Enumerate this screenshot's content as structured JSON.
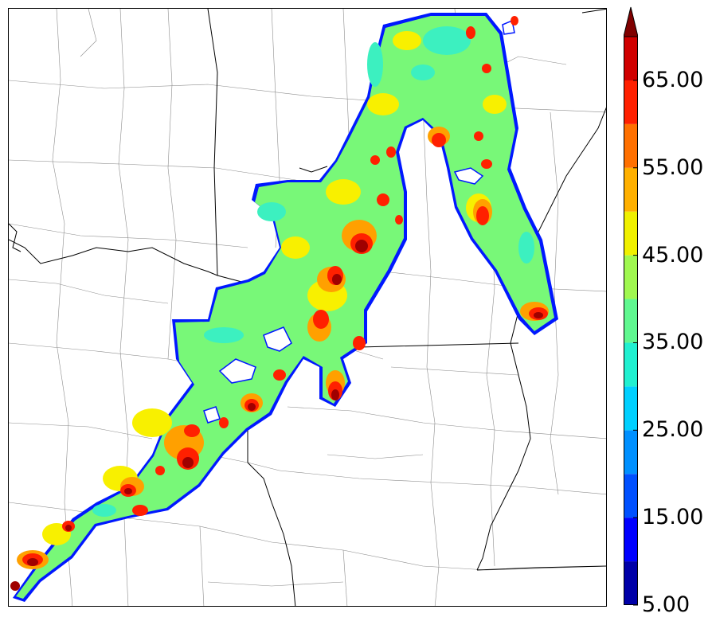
{
  "map": {
    "description_type": "radar reflectivity swath map",
    "colors": {
      "light_blue": "#00d8ff",
      "aqua": "#3cf0c0",
      "green": "#78f878",
      "lime": "#b8f840",
      "yellow": "#f8f000",
      "orange": "#ffa000",
      "red": "#ff2000",
      "dark_red": "#c00000",
      "maroon": "#800000",
      "edge_blue": "#0018ff"
    }
  },
  "colorbar": {
    "levels": [
      5,
      10,
      15,
      20,
      25,
      30,
      35,
      40,
      45,
      50,
      55,
      60,
      65,
      70
    ],
    "colors": [
      "#0000a8",
      "#0000ff",
      "#0050ff",
      "#0090ff",
      "#00d0ff",
      "#20f0d0",
      "#60f890",
      "#a0f850",
      "#f0f000",
      "#ffb000",
      "#ff7000",
      "#ff2000",
      "#d00000",
      "#800000"
    ],
    "extend": "max",
    "tick_labels": [
      {
        "value": 65,
        "text": "65.00"
      },
      {
        "value": 55,
        "text": "55.00"
      },
      {
        "value": 45,
        "text": "45.00"
      },
      {
        "value": 35,
        "text": "35.00"
      },
      {
        "value": 25,
        "text": "25.00"
      },
      {
        "value": 15,
        "text": "15.00"
      },
      {
        "value": 5,
        "text": "5.00"
      }
    ]
  }
}
